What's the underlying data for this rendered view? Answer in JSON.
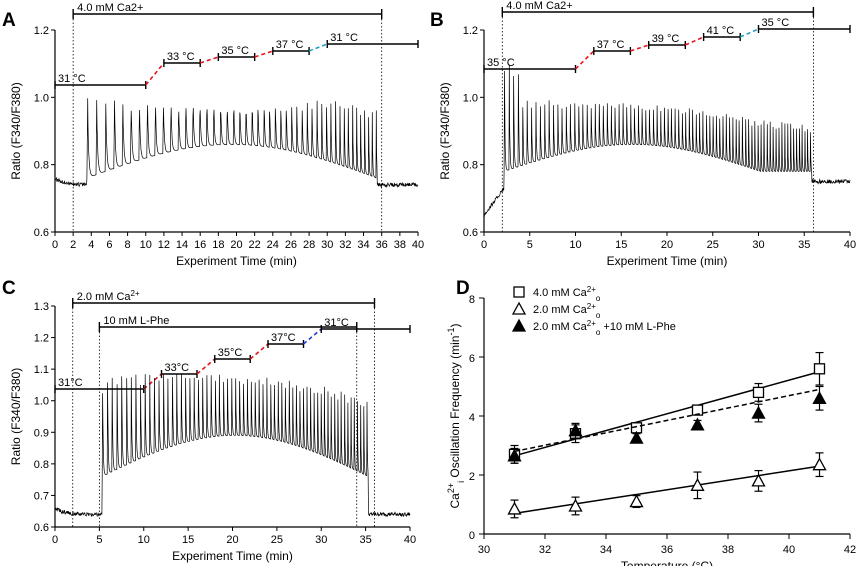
{
  "chart_data": [
    {
      "panel": "A",
      "type": "line",
      "xlabel": "Experiment Time (min)",
      "ylabel": "Ratio (F340/F380)",
      "xlim": [
        0,
        40
      ],
      "ylim": [
        0.6,
        1.2
      ],
      "xticks": [
        "0",
        "2",
        "4",
        "6",
        "8",
        "10",
        "12",
        "14",
        "16",
        "18",
        "20",
        "22",
        "24",
        "26",
        "28",
        "30",
        "32",
        "34",
        "36",
        "38",
        "40"
      ],
      "yticks": [
        "0.6",
        "0.8",
        "1.0",
        "1.2"
      ],
      "bars": [
        {
          "label": "4.0 mM Ca2+",
          "start": 2,
          "end": 36
        }
      ],
      "temperatures": [
        {
          "label": "31 °C",
          "start": 0,
          "end": 10
        },
        {
          "label": "33 °C",
          "start": 12,
          "end": 16
        },
        {
          "label": "35 °C",
          "start": 18,
          "end": 22
        },
        {
          "label": "37 °C",
          "start": 24,
          "end": 28
        },
        {
          "label": "31 °C",
          "start": 30,
          "end": 40
        }
      ],
      "trace": {
        "baseline_pre": 0.74,
        "baseline_post": 0.74,
        "osc_start": 3.5,
        "osc_end": 35.5,
        "start_period": 1.0,
        "end_period": 0.4
      }
    },
    {
      "panel": "B",
      "type": "line",
      "xlabel": "Experiment Time (min)",
      "ylabel": "Ratio (F340/F380)",
      "xlim": [
        0,
        40
      ],
      "ylim": [
        0.6,
        1.2
      ],
      "xticks": [
        "0",
        "5",
        "10",
        "15",
        "20",
        "25",
        "30",
        "35",
        "40"
      ],
      "yticks": [
        "0.6",
        "0.8",
        "1.0",
        "1.2"
      ],
      "bars": [
        {
          "label": "4.0 mM Ca2+",
          "start": 2,
          "end": 36
        }
      ],
      "temperatures": [
        {
          "label": "35 °C",
          "start": 0,
          "end": 10
        },
        {
          "label": "37 °C",
          "start": 12,
          "end": 16
        },
        {
          "label": "39 °C",
          "start": 18,
          "end": 22
        },
        {
          "label": "41 °C",
          "start": 24,
          "end": 28
        },
        {
          "label": "35 °C",
          "start": 30,
          "end": 40
        }
      ],
      "trace": {
        "baseline_pre": 0.65,
        "baseline_post": 0.75,
        "osc_start": 2.2,
        "osc_end": 35.8,
        "start_period": 0.5,
        "end_period": 0.3
      }
    },
    {
      "panel": "C",
      "type": "line",
      "xlabel": "Experiment Time (min)",
      "ylabel": "Ratio (F340/F380)",
      "xlim": [
        0,
        40
      ],
      "ylim": [
        0.6,
        1.3
      ],
      "xticks": [
        "0",
        "5",
        "10",
        "15",
        "20",
        "25",
        "30",
        "35",
        "40"
      ],
      "yticks": [
        "0.6",
        "0.7",
        "0.8",
        "0.9",
        "1.0",
        "1.1",
        "1.2",
        "1.3"
      ],
      "bars": [
        {
          "label": "2.0 mM Ca",
          "sup": "2+",
          "start": 2,
          "end": 36
        },
        {
          "label": "10 mM L-Phe",
          "start": 5,
          "end": 34
        }
      ],
      "temperatures": [
        {
          "label": "31°C",
          "start": 0,
          "end": 10
        },
        {
          "label": "33°C",
          "start": 12,
          "end": 16
        },
        {
          "label": "35°C",
          "start": 18,
          "end": 22
        },
        {
          "label": "37°C",
          "start": 24,
          "end": 28
        },
        {
          "label": "31°C",
          "start": 30,
          "end": 40
        }
      ],
      "trace": {
        "baseline_pre": 0.64,
        "baseline_post": 0.64,
        "osc_start": 5.3,
        "osc_end": 35.3,
        "start_period": 0.55,
        "end_period": 0.35
      }
    },
    {
      "panel": "D",
      "type": "scatter",
      "xlabel": "Temperature (°C)",
      "ylabel": {
        "main": "Ca",
        "sup": "2+",
        "sub": "i",
        "rest": " Oscillation  Frequency (min",
        "unit_sup": "-1",
        "close": ")"
      },
      "xlim": [
        30,
        42
      ],
      "ylim": [
        0,
        8
      ],
      "xticks": [
        "30",
        "32",
        "34",
        "36",
        "38",
        "40",
        "42"
      ],
      "yticks": [
        "0",
        "2",
        "4",
        "6",
        "8"
      ],
      "series": [
        {
          "name": "4.0 mM Ca",
          "sup": "2+",
          "sub": "o",
          "suffix": "",
          "marker": "square-open",
          "line": "solid",
          "x": [
            31,
            33,
            35,
            37,
            39,
            41
          ],
          "y": [
            2.7,
            3.4,
            3.6,
            4.2,
            4.8,
            5.6
          ],
          "err": [
            0.3,
            0.3,
            0.15,
            0.15,
            0.3,
            0.55
          ],
          "fit": [
            [
              31,
              2.65
            ],
            [
              41,
              5.5
            ]
          ]
        },
        {
          "name": "2.0 mM Ca",
          "sup": "2+",
          "sub": "o",
          "suffix": "",
          "marker": "triangle-open",
          "line": "solid",
          "x": [
            31,
            33,
            35,
            37,
            39,
            41
          ],
          "y": [
            0.85,
            0.95,
            1.1,
            1.65,
            1.8,
            2.35
          ],
          "err": [
            0.3,
            0.3,
            0.2,
            0.45,
            0.35,
            0.4
          ],
          "fit": [
            [
              31,
              0.7
            ],
            [
              41,
              2.3
            ]
          ]
        },
        {
          "name": "2.0 mM Ca",
          "sup": "2+",
          "sub": "o",
          "suffix": " +10 mM L-Phe",
          "marker": "triangle-filled",
          "line": "dashed",
          "x": [
            31,
            33,
            35,
            37,
            39,
            41
          ],
          "y": [
            2.65,
            3.5,
            3.25,
            3.7,
            4.1,
            4.6
          ],
          "err": [
            0.25,
            0.25,
            0.15,
            0.15,
            0.3,
            0.4
          ],
          "fit": [
            [
              31,
              2.8
            ],
            [
              41,
              4.9
            ]
          ]
        }
      ]
    }
  ],
  "colors": {
    "axis": "#000000",
    "ramp_up": "#e8141c",
    "ramp_down_ab": "#1f9fbf",
    "ramp_down_c": "#1f3fd6",
    "trace": "#000000"
  }
}
